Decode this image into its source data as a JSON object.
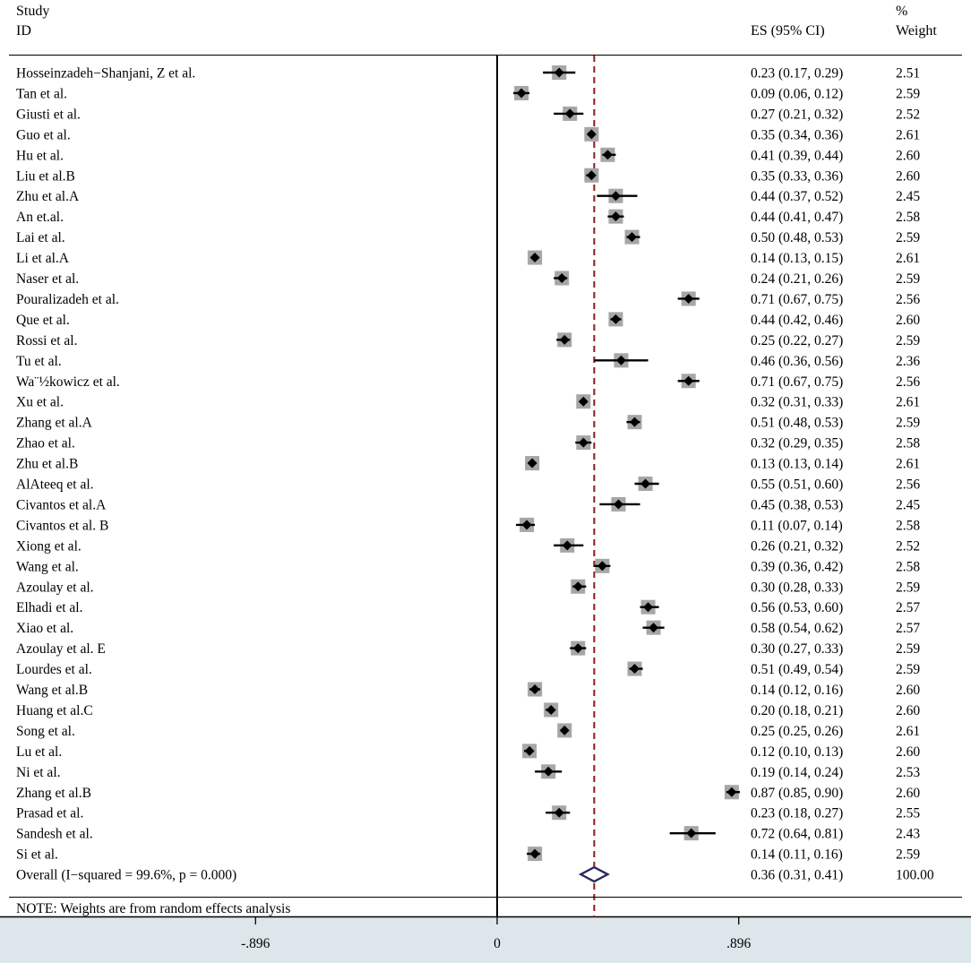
{
  "header": {
    "study_line1": "Study",
    "study_line2": "ID",
    "es_label": "ES (95% CI)",
    "weight_line1": "%",
    "weight_line2": "Weight"
  },
  "chart_data": {
    "type": "forest",
    "x_axis_ticks": [
      "-.896",
      "0",
      ".896"
    ],
    "xlim": [
      -1.84,
      1.75
    ],
    "null_line": 0,
    "overall_line": 0.36,
    "studies": [
      {
        "id": "Hosseinzadeh−Shanjani, Z et al.",
        "es": 0.23,
        "lo": 0.17,
        "hi": 0.29,
        "ci": "0.23 (0.17, 0.29)",
        "weight": "2.51"
      },
      {
        "id": "Tan et al.",
        "es": 0.09,
        "lo": 0.06,
        "hi": 0.12,
        "ci": "0.09 (0.06, 0.12)",
        "weight": "2.59"
      },
      {
        "id": "Giusti et al.",
        "es": 0.27,
        "lo": 0.21,
        "hi": 0.32,
        "ci": "0.27 (0.21, 0.32)",
        "weight": "2.52"
      },
      {
        "id": "Guo et al.",
        "es": 0.35,
        "lo": 0.34,
        "hi": 0.36,
        "ci": "0.35 (0.34, 0.36)",
        "weight": "2.61"
      },
      {
        "id": "Hu et al.",
        "es": 0.41,
        "lo": 0.39,
        "hi": 0.44,
        "ci": "0.41 (0.39, 0.44)",
        "weight": "2.60"
      },
      {
        "id": "Liu et al.B",
        "es": 0.35,
        "lo": 0.33,
        "hi": 0.36,
        "ci": "0.35 (0.33, 0.36)",
        "weight": "2.60"
      },
      {
        "id": "Zhu et al.A",
        "es": 0.44,
        "lo": 0.37,
        "hi": 0.52,
        "ci": "0.44 (0.37, 0.52)",
        "weight": "2.45"
      },
      {
        "id": "An et.al.",
        "es": 0.44,
        "lo": 0.41,
        "hi": 0.47,
        "ci": "0.44 (0.41, 0.47)",
        "weight": "2.58"
      },
      {
        "id": "Lai et al.",
        "es": 0.5,
        "lo": 0.48,
        "hi": 0.53,
        "ci": "0.50 (0.48, 0.53)",
        "weight": "2.59"
      },
      {
        "id": "Li et al.A",
        "es": 0.14,
        "lo": 0.13,
        "hi": 0.15,
        "ci": "0.14 (0.13, 0.15)",
        "weight": "2.61"
      },
      {
        "id": "Naser et al.",
        "es": 0.24,
        "lo": 0.21,
        "hi": 0.26,
        "ci": "0.24 (0.21, 0.26)",
        "weight": "2.59"
      },
      {
        "id": "Pouralizadeh et al.",
        "es": 0.71,
        "lo": 0.67,
        "hi": 0.75,
        "ci": "0.71 (0.67, 0.75)",
        "weight": "2.56"
      },
      {
        "id": "Que et al.",
        "es": 0.44,
        "lo": 0.42,
        "hi": 0.46,
        "ci": "0.44 (0.42, 0.46)",
        "weight": "2.60"
      },
      {
        "id": "Rossi et al.",
        "es": 0.25,
        "lo": 0.22,
        "hi": 0.27,
        "ci": "0.25 (0.22, 0.27)",
        "weight": "2.59"
      },
      {
        "id": "Tu et al.",
        "es": 0.46,
        "lo": 0.36,
        "hi": 0.56,
        "ci": "0.46 (0.36, 0.56)",
        "weight": "2.36"
      },
      {
        "id": "Wa¨½kowicz et al.",
        "es": 0.71,
        "lo": 0.67,
        "hi": 0.75,
        "ci": "0.71 (0.67, 0.75)",
        "weight": "2.56"
      },
      {
        "id": "Xu et al.",
        "es": 0.32,
        "lo": 0.31,
        "hi": 0.33,
        "ci": "0.32 (0.31, 0.33)",
        "weight": "2.61"
      },
      {
        "id": "Zhang et al.A",
        "es": 0.51,
        "lo": 0.48,
        "hi": 0.53,
        "ci": "0.51 (0.48, 0.53)",
        "weight": "2.59"
      },
      {
        "id": "Zhao et al.",
        "es": 0.32,
        "lo": 0.29,
        "hi": 0.35,
        "ci": "0.32 (0.29, 0.35)",
        "weight": "2.58"
      },
      {
        "id": "Zhu et al.B",
        "es": 0.13,
        "lo": 0.13,
        "hi": 0.14,
        "ci": "0.13 (0.13, 0.14)",
        "weight": "2.61"
      },
      {
        "id": "AlAteeq et al.",
        "es": 0.55,
        "lo": 0.51,
        "hi": 0.6,
        "ci": "0.55 (0.51, 0.60)",
        "weight": "2.56"
      },
      {
        "id": "Civantos et al.A",
        "es": 0.45,
        "lo": 0.38,
        "hi": 0.53,
        "ci": "0.45 (0.38, 0.53)",
        "weight": "2.45"
      },
      {
        "id": "Civantos et al. B",
        "es": 0.11,
        "lo": 0.07,
        "hi": 0.14,
        "ci": "0.11 (0.07, 0.14)",
        "weight": "2.58"
      },
      {
        "id": "Xiong et al.",
        "es": 0.26,
        "lo": 0.21,
        "hi": 0.32,
        "ci": "0.26 (0.21, 0.32)",
        "weight": "2.52"
      },
      {
        "id": "Wang et al.",
        "es": 0.39,
        "lo": 0.36,
        "hi": 0.42,
        "ci": "0.39 (0.36, 0.42)",
        "weight": "2.58"
      },
      {
        "id": "Azoulay et al.",
        "es": 0.3,
        "lo": 0.28,
        "hi": 0.33,
        "ci": "0.30 (0.28, 0.33)",
        "weight": "2.59"
      },
      {
        "id": "Elhadi et al.",
        "es": 0.56,
        "lo": 0.53,
        "hi": 0.6,
        "ci": "0.56 (0.53, 0.60)",
        "weight": "2.57"
      },
      {
        "id": "Xiao et al.",
        "es": 0.58,
        "lo": 0.54,
        "hi": 0.62,
        "ci": "0.58 (0.54, 0.62)",
        "weight": "2.57"
      },
      {
        "id": "Azoulay et al. E",
        "es": 0.3,
        "lo": 0.27,
        "hi": 0.33,
        "ci": "0.30 (0.27, 0.33)",
        "weight": "2.59"
      },
      {
        "id": "Lourdes et al.",
        "es": 0.51,
        "lo": 0.49,
        "hi": 0.54,
        "ci": "0.51 (0.49, 0.54)",
        "weight": "2.59"
      },
      {
        "id": "Wang et al.B",
        "es": 0.14,
        "lo": 0.12,
        "hi": 0.16,
        "ci": "0.14 (0.12, 0.16)",
        "weight": "2.60"
      },
      {
        "id": "Huang et al.C",
        "es": 0.2,
        "lo": 0.18,
        "hi": 0.21,
        "ci": "0.20 (0.18, 0.21)",
        "weight": "2.60"
      },
      {
        "id": "Song et al.",
        "es": 0.25,
        "lo": 0.25,
        "hi": 0.26,
        "ci": "0.25 (0.25, 0.26)",
        "weight": "2.61"
      },
      {
        "id": "Lu et al.",
        "es": 0.12,
        "lo": 0.1,
        "hi": 0.13,
        "ci": "0.12 (0.10, 0.13)",
        "weight": "2.60"
      },
      {
        "id": "Ni et al.",
        "es": 0.19,
        "lo": 0.14,
        "hi": 0.24,
        "ci": "0.19 (0.14, 0.24)",
        "weight": "2.53"
      },
      {
        "id": "Zhang et al.B",
        "es": 0.87,
        "lo": 0.85,
        "hi": 0.9,
        "ci": "0.87 (0.85, 0.90)",
        "weight": "2.60"
      },
      {
        "id": "Prasad et al.",
        "es": 0.23,
        "lo": 0.18,
        "hi": 0.27,
        "ci": "0.23 (0.18, 0.27)",
        "weight": "2.55"
      },
      {
        "id": "Sandesh et al.",
        "es": 0.72,
        "lo": 0.64,
        "hi": 0.81,
        "ci": "0.72 (0.64, 0.81)",
        "weight": "2.43"
      },
      {
        "id": "Si et al.",
        "es": 0.14,
        "lo": 0.11,
        "hi": 0.16,
        "ci": "0.14 (0.11, 0.16)",
        "weight": "2.59"
      }
    ],
    "overall": {
      "id": "Overall  (I−squared = 99.6%, p = 0.000)",
      "es": 0.36,
      "lo": 0.31,
      "hi": 0.41,
      "ci": "0.36 (0.31, 0.41)",
      "weight": "100.00"
    },
    "note": "NOTE: Weights are from random effects analysis",
    "colors": {
      "marker": "#000000",
      "weight_box": "#a6a6a6",
      "overall_line": "#8b1a1a",
      "diamond": "#2a2a5e",
      "axis_band": "#dde6ea"
    }
  }
}
